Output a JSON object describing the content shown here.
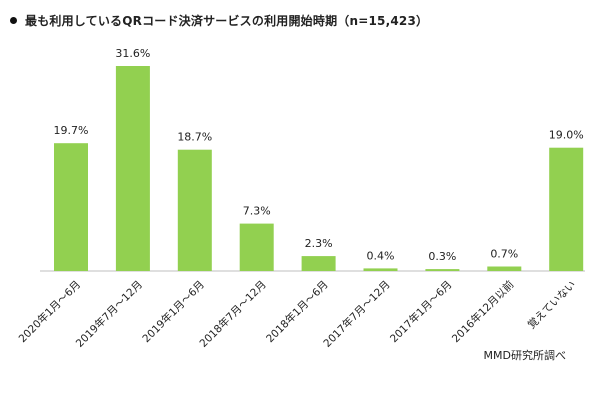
{
  "page": {
    "title": "最も利用しているQRコード決済サービスの利用開始時期（n=15,423）",
    "source": "MMD研究所調べ"
  },
  "chart_data": {
    "type": "bar",
    "title": "最も利用しているQRコード決済サービスの利用開始時期（n=15,423）",
    "categories": [
      "2020年1月～6月",
      "2019年7月～12月",
      "2019年1月～6月",
      "2018年7月～12月",
      "2018年1月～6月",
      "2017年7月～12月",
      "2017年1月～6月",
      "2016年12月以前",
      "覚えていない"
    ],
    "values": [
      19.7,
      31.6,
      18.7,
      7.3,
      2.3,
      0.4,
      0.3,
      0.7,
      19.0
    ],
    "value_labels": [
      "19.7%",
      "31.6%",
      "18.7%",
      "7.3%",
      "2.3%",
      "0.4%",
      "0.3%",
      "0.7%",
      "19.0%"
    ],
    "ylim": [
      0,
      31.6
    ],
    "bar_color": "#92d050",
    "axis_color": "#bfbfbf",
    "grid": false,
    "legend": "none"
  }
}
